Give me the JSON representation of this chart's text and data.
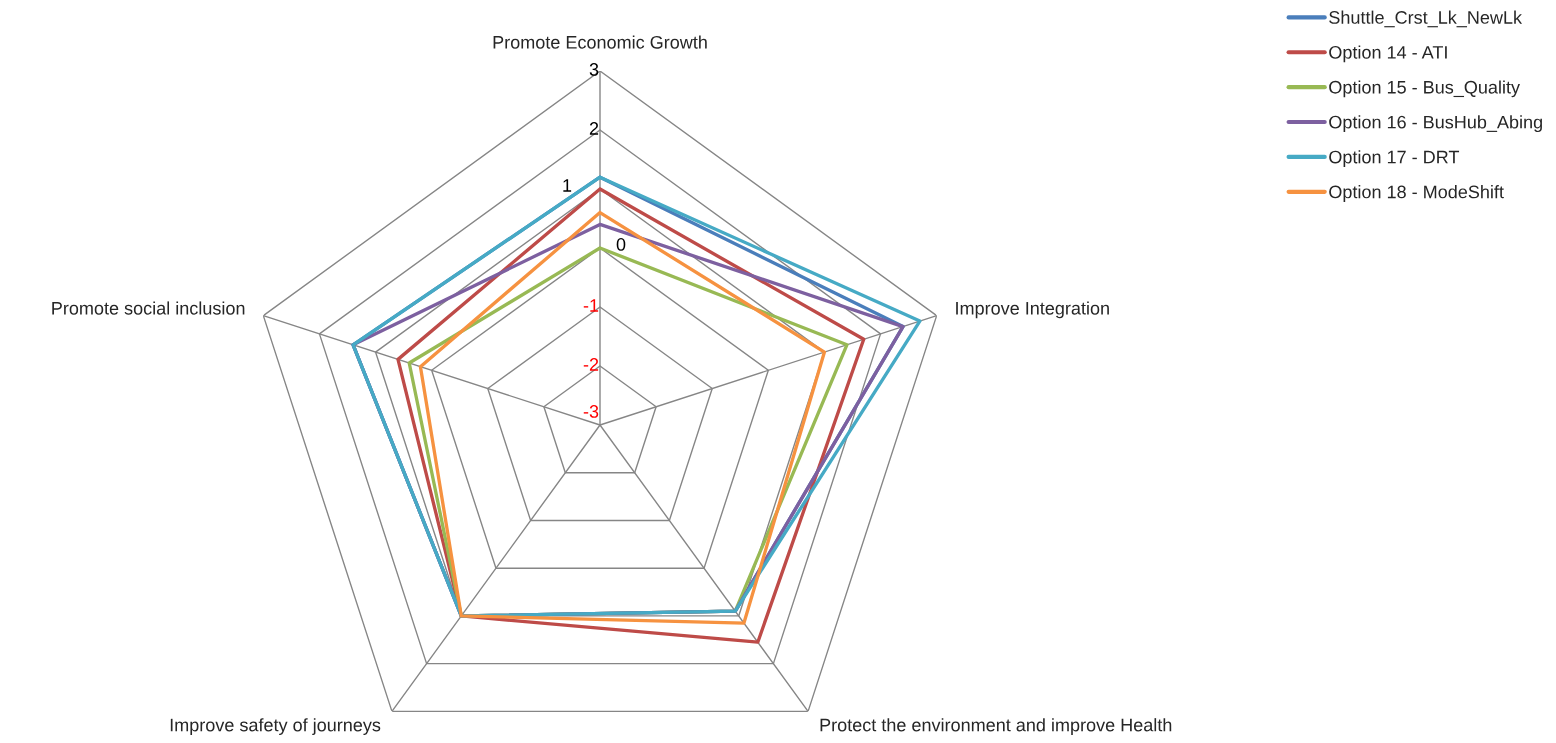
{
  "chart_data": {
    "type": "radar",
    "categories": [
      "Promote Economic Growth",
      "Improve Integration",
      "Protect the environment and improve Health",
      "Improve safety of journeys",
      "Promote social inclusion"
    ],
    "series": [
      {
        "name": "Shuttle_Crst_Lk_NewLk",
        "color": "#4a7ebb",
        "values": [
          1.2,
          2.4,
          0.9,
          1.0,
          1.4
        ]
      },
      {
        "name": "Option 14 - ATI",
        "color": "#be4b48",
        "values": [
          1.0,
          1.7,
          1.55,
          1.0,
          0.6
        ]
      },
      {
        "name": "Option 15 - Bus_Quality",
        "color": "#98b954",
        "values": [
          0,
          1.4,
          0.9,
          1.0,
          0.4
        ]
      },
      {
        "name": "Option 16 - BusHub_Abing",
        "color": "#7d60a0",
        "values": [
          0.4,
          2.4,
          0.9,
          1.0,
          1.4
        ]
      },
      {
        "name": "Option 17 - DRT",
        "color": "#46aac5",
        "values": [
          1.2,
          2.7,
          0.9,
          1.0,
          1.4
        ]
      },
      {
        "name": "Option 18 - ModeShift",
        "color": "#f69240",
        "values": [
          0.6,
          1.0,
          1.15,
          1.0,
          0.2
        ]
      }
    ],
    "ylim": [
      -3,
      3
    ],
    "yticks": [
      -3,
      -2,
      -1,
      0,
      1,
      2,
      3
    ],
    "grid": true,
    "legend": "top right"
  }
}
